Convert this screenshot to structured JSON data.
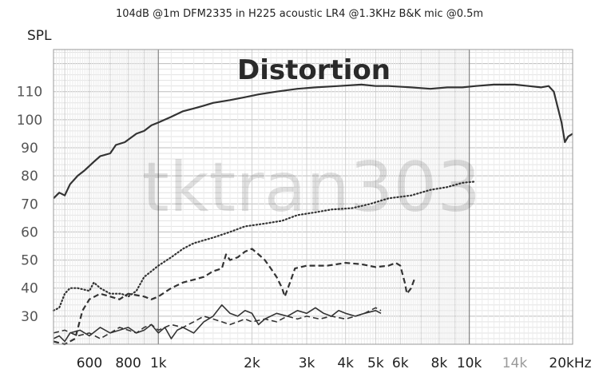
{
  "chart_data": {
    "type": "line",
    "title": "104dB @1m DFM2335 in H225 acoustic LR4 @1.3KHz B&K mic @0.5m",
    "ylabel": "SPL",
    "annotation": "Distortion",
    "watermark": "tktran303",
    "xscale": "log",
    "xlim": [
      460,
      21500
    ],
    "ylim": [
      20,
      125
    ],
    "grid": true,
    "x_ticks": [
      {
        "value": 600,
        "label": "600"
      },
      {
        "value": 800,
        "label": "800"
      },
      {
        "value": 1000,
        "label": "1k"
      },
      {
        "value": 2000,
        "label": "2k"
      },
      {
        "value": 3000,
        "label": "3k"
      },
      {
        "value": 4000,
        "label": "4k"
      },
      {
        "value": 5000,
        "label": "5k"
      },
      {
        "value": 6000,
        "label": "6k"
      },
      {
        "value": 8000,
        "label": "8k"
      },
      {
        "value": 10000,
        "label": "10k"
      },
      {
        "value": 14000,
        "label": "14k"
      },
      {
        "value": 20000,
        "label": "20kHz"
      }
    ],
    "y_ticks": [
      30,
      40,
      50,
      60,
      70,
      80,
      90,
      100,
      110
    ],
    "series": [
      {
        "style": "solid",
        "width": 2.2,
        "color": "#333333",
        "points": [
          [
            460,
            72
          ],
          [
            480,
            74
          ],
          [
            500,
            73
          ],
          [
            520,
            77
          ],
          [
            550,
            80
          ],
          [
            580,
            82
          ],
          [
            620,
            85
          ],
          [
            650,
            87
          ],
          [
            700,
            88
          ],
          [
            730,
            91
          ],
          [
            780,
            92
          ],
          [
            850,
            95
          ],
          [
            900,
            96
          ],
          [
            950,
            98
          ],
          [
            1000,
            99
          ],
          [
            1100,
            101
          ],
          [
            1200,
            103
          ],
          [
            1300,
            104
          ],
          [
            1400,
            105
          ],
          [
            1500,
            106
          ],
          [
            1700,
            107
          ],
          [
            1900,
            108
          ],
          [
            2100,
            109
          ],
          [
            2400,
            110
          ],
          [
            2800,
            111
          ],
          [
            3200,
            111.5
          ],
          [
            3800,
            112
          ],
          [
            4500,
            112.5
          ],
          [
            5000,
            112
          ],
          [
            5500,
            112
          ],
          [
            6500,
            111.5
          ],
          [
            7500,
            111
          ],
          [
            8500,
            111.5
          ],
          [
            9500,
            111.5
          ],
          [
            10500,
            112
          ],
          [
            12000,
            112.5
          ],
          [
            14000,
            112.5
          ],
          [
            15500,
            112
          ],
          [
            17000,
            111.5
          ],
          [
            18000,
            112
          ],
          [
            18700,
            110
          ],
          [
            19300,
            104
          ],
          [
            19800,
            99
          ],
          [
            20300,
            92
          ],
          [
            20800,
            94
          ],
          [
            21500,
            95
          ]
        ]
      },
      {
        "style": "dotted",
        "width": 2.2,
        "color": "#333333",
        "points": [
          [
            460,
            32
          ],
          [
            480,
            33
          ],
          [
            500,
            38
          ],
          [
            520,
            40
          ],
          [
            550,
            40
          ],
          [
            600,
            39
          ],
          [
            620,
            42
          ],
          [
            650,
            40
          ],
          [
            700,
            38
          ],
          [
            760,
            38
          ],
          [
            800,
            37
          ],
          [
            850,
            39
          ],
          [
            900,
            44
          ],
          [
            950,
            46
          ],
          [
            1000,
            48
          ],
          [
            1100,
            51
          ],
          [
            1200,
            54
          ],
          [
            1300,
            56
          ],
          [
            1500,
            58
          ],
          [
            1700,
            60
          ],
          [
            1900,
            62
          ],
          [
            2200,
            63
          ],
          [
            2500,
            64
          ],
          [
            2800,
            66
          ],
          [
            3200,
            67
          ],
          [
            3600,
            68
          ],
          [
            4200,
            68.5
          ],
          [
            4800,
            70
          ],
          [
            5500,
            72
          ],
          [
            6500,
            73
          ],
          [
            7500,
            75
          ],
          [
            8500,
            76
          ],
          [
            9500,
            77.5
          ],
          [
            10500,
            78
          ]
        ]
      },
      {
        "style": "dashed",
        "width": 2.2,
        "color": "#333333",
        "points": [
          [
            460,
            21
          ],
          [
            500,
            20
          ],
          [
            540,
            22
          ],
          [
            570,
            32
          ],
          [
            600,
            36
          ],
          [
            650,
            38
          ],
          [
            700,
            37
          ],
          [
            750,
            36
          ],
          [
            800,
            38
          ],
          [
            900,
            37
          ],
          [
            950,
            36
          ],
          [
            1000,
            37
          ],
          [
            1100,
            40
          ],
          [
            1200,
            42
          ],
          [
            1300,
            43
          ],
          [
            1400,
            44
          ],
          [
            1500,
            46
          ],
          [
            1600,
            47
          ],
          [
            1650,
            52
          ],
          [
            1700,
            50
          ],
          [
            1800,
            51
          ],
          [
            1900,
            53
          ],
          [
            2000,
            54
          ],
          [
            2100,
            52
          ],
          [
            2200,
            50
          ],
          [
            2300,
            47
          ],
          [
            2400,
            44
          ],
          [
            2500,
            40
          ],
          [
            2550,
            37
          ],
          [
            2650,
            42
          ],
          [
            2750,
            47
          ],
          [
            3000,
            48
          ],
          [
            3500,
            48
          ],
          [
            4000,
            49
          ],
          [
            4500,
            48.5
          ],
          [
            5000,
            47.5
          ],
          [
            5500,
            48
          ],
          [
            5800,
            49
          ],
          [
            6000,
            48
          ],
          [
            6200,
            42
          ],
          [
            6300,
            38
          ],
          [
            6500,
            40
          ],
          [
            6700,
            44
          ]
        ]
      },
      {
        "style": "solid",
        "width": 1.6,
        "color": "#333333",
        "points": [
          [
            460,
            22
          ],
          [
            480,
            23
          ],
          [
            500,
            21
          ],
          [
            520,
            24
          ],
          [
            560,
            25
          ],
          [
            600,
            23
          ],
          [
            650,
            26
          ],
          [
            700,
            24
          ],
          [
            750,
            25
          ],
          [
            800,
            26
          ],
          [
            850,
            24
          ],
          [
            900,
            25
          ],
          [
            950,
            27
          ],
          [
            1000,
            24
          ],
          [
            1050,
            26
          ],
          [
            1100,
            22
          ],
          [
            1150,
            25
          ],
          [
            1200,
            26
          ],
          [
            1300,
            24
          ],
          [
            1400,
            28
          ],
          [
            1500,
            30
          ],
          [
            1600,
            34
          ],
          [
            1700,
            31
          ],
          [
            1800,
            30
          ],
          [
            1900,
            32
          ],
          [
            2000,
            31
          ],
          [
            2100,
            27
          ],
          [
            2200,
            29
          ],
          [
            2400,
            31
          ],
          [
            2600,
            30
          ],
          [
            2800,
            32
          ],
          [
            3000,
            31
          ],
          [
            3200,
            33
          ],
          [
            3400,
            31
          ],
          [
            3600,
            30
          ],
          [
            3800,
            32
          ],
          [
            4000,
            31
          ],
          [
            4300,
            30
          ],
          [
            4600,
            31
          ],
          [
            5000,
            32
          ],
          [
            5200,
            31
          ]
        ]
      },
      {
        "style": "dashed",
        "width": 1.6,
        "color": "#333333",
        "points": [
          [
            460,
            24
          ],
          [
            500,
            25
          ],
          [
            550,
            23
          ],
          [
            600,
            24
          ],
          [
            650,
            22
          ],
          [
            700,
            24
          ],
          [
            750,
            26
          ],
          [
            800,
            25
          ],
          [
            850,
            24
          ],
          [
            900,
            26
          ],
          [
            950,
            27
          ],
          [
            1000,
            25
          ],
          [
            1100,
            27
          ],
          [
            1200,
            26
          ],
          [
            1300,
            28
          ],
          [
            1400,
            30
          ],
          [
            1500,
            29
          ],
          [
            1600,
            28
          ],
          [
            1700,
            27
          ],
          [
            1800,
            28
          ],
          [
            1900,
            29
          ],
          [
            2000,
            28
          ],
          [
            2200,
            29
          ],
          [
            2400,
            28
          ],
          [
            2600,
            30
          ],
          [
            2800,
            29
          ],
          [
            3000,
            30
          ],
          [
            3300,
            29
          ],
          [
            3600,
            30
          ],
          [
            4000,
            29
          ],
          [
            4300,
            30
          ],
          [
            4600,
            31
          ],
          [
            5000,
            33
          ],
          [
            5200,
            32
          ]
        ]
      }
    ]
  }
}
